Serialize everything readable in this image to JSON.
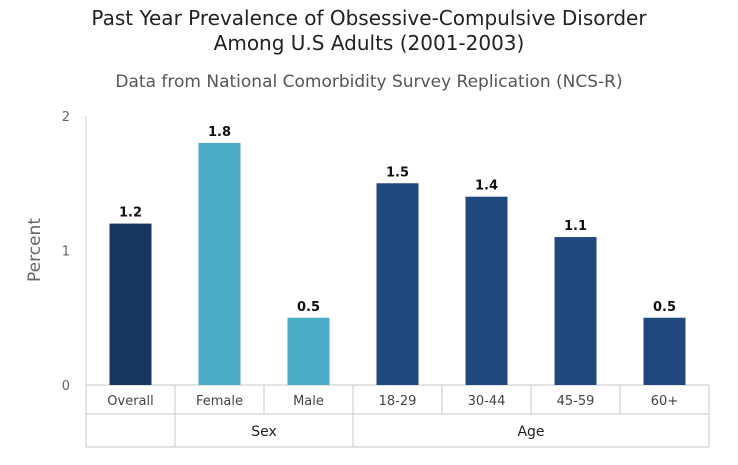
{
  "chart_data": {
    "type": "bar",
    "title_lines": [
      "Past Year Prevalence of Obsessive-Compulsive Disorder",
      "Among U.S Adults (2001-2003)"
    ],
    "subtitle": "Data from National Comorbidity Survey Replication (NCS-R)",
    "ylabel": "Percent",
    "ylim": [
      0,
      2
    ],
    "yticks": [
      0,
      1,
      2
    ],
    "categories": [
      "Overall",
      "Female",
      "Male",
      "18-29",
      "30-44",
      "45-59",
      "60+"
    ],
    "values": [
      1.2,
      1.8,
      0.5,
      1.5,
      1.4,
      1.1,
      0.5
    ],
    "value_labels": [
      "1.2",
      "1.8",
      "0.5",
      "1.5",
      "1.4",
      "1.1",
      "0.5"
    ],
    "groups": [
      {
        "label": "",
        "categories": [
          "Overall"
        ]
      },
      {
        "label": "Sex",
        "categories": [
          "Female",
          "Male"
        ]
      },
      {
        "label": "Age",
        "categories": [
          "18-29",
          "30-44",
          "45-59",
          "60+"
        ]
      }
    ],
    "colors": [
      "#17375e",
      "#4bacc6",
      "#4bacc6",
      "#1f497d",
      "#1f497d",
      "#1f497d",
      "#1f497d"
    ],
    "grid": false
  }
}
